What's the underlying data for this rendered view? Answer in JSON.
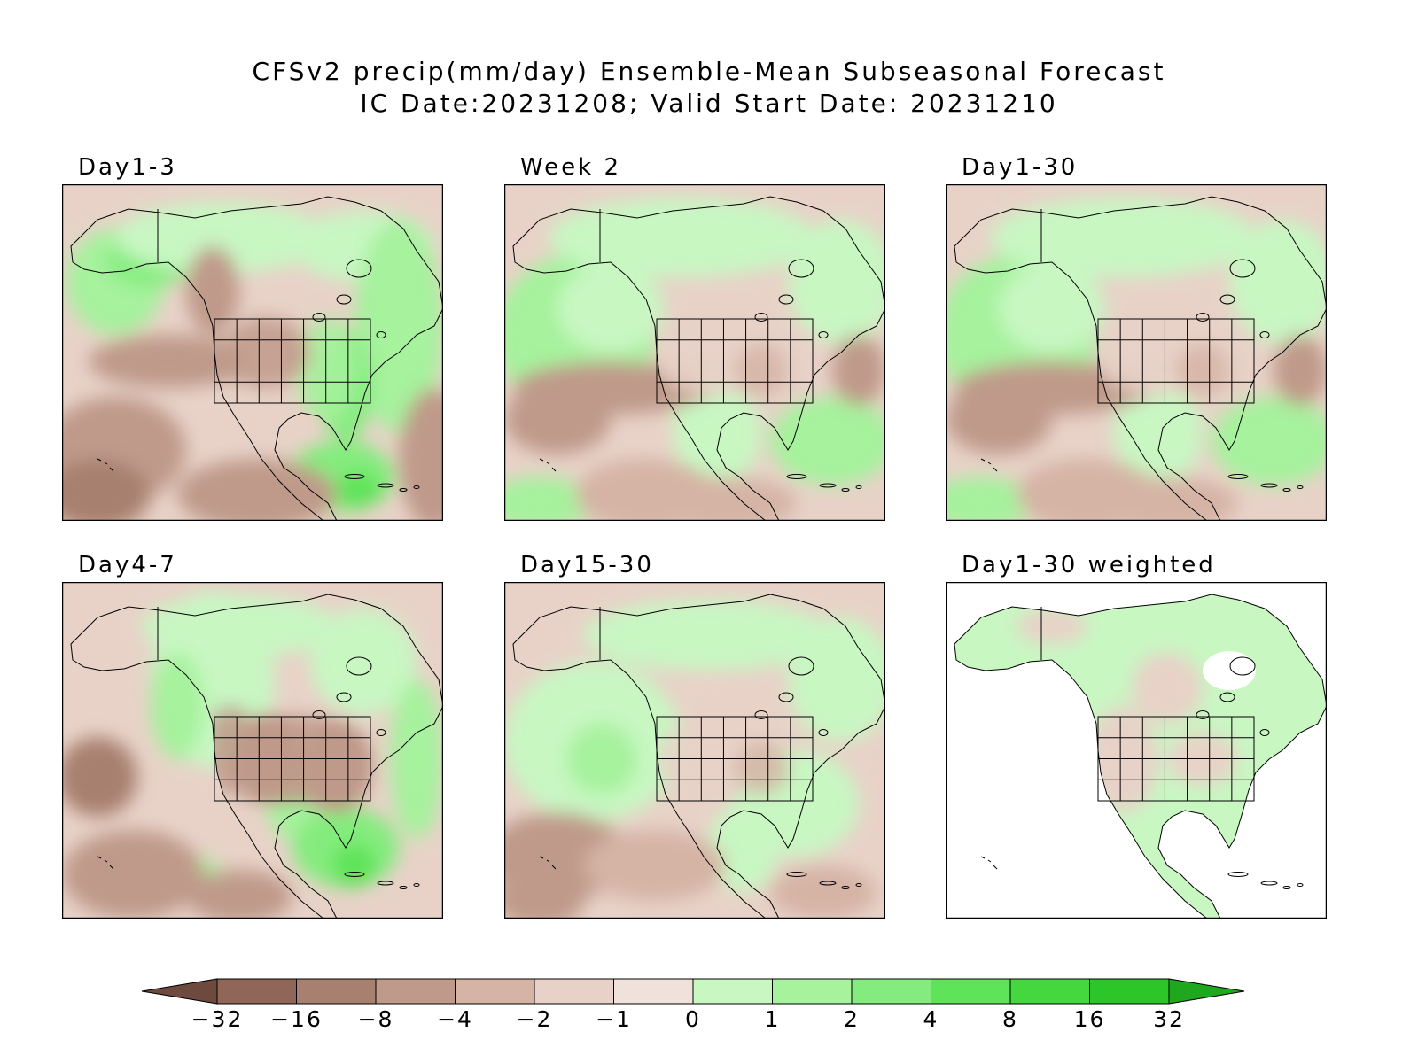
{
  "title": {
    "line1": "CFSv2 precip(mm/day) Ensemble-Mean Subseasonal Forecast",
    "line2": "IC Date:20231208; Valid Start Date: 20231210"
  },
  "panels": [
    {
      "id": "day1-3",
      "label": "Day1-3",
      "style": "wet-east"
    },
    {
      "id": "week2",
      "label": "Week 2",
      "style": "mixed"
    },
    {
      "id": "day1-30",
      "label": "Day1-30",
      "style": "mixed"
    },
    {
      "id": "day4-7",
      "label": "Day4-7",
      "style": "dry-mid"
    },
    {
      "id": "day15-30",
      "label": "Day15-30",
      "style": "wet-pacific"
    },
    {
      "id": "day1-30-weighted",
      "label": "Day1-30 weighted",
      "style": "land-only"
    }
  ],
  "colorbar": {
    "tick_labels": [
      "−32",
      "−16",
      "−8",
      "−4",
      "−2",
      "−1",
      "0",
      "1",
      "2",
      "4",
      "8",
      "16",
      "32"
    ],
    "colors": [
      "#6e4a3e",
      "#8f6658",
      "#a88070",
      "#bf9a8a",
      "#d5b4a5",
      "#e8d2c8",
      "#f0e1da",
      "#c8f7c2",
      "#a6f29d",
      "#84ec7e",
      "#5fe359",
      "#44d83e",
      "#2cc628",
      "#1fa81e"
    ]
  }
}
